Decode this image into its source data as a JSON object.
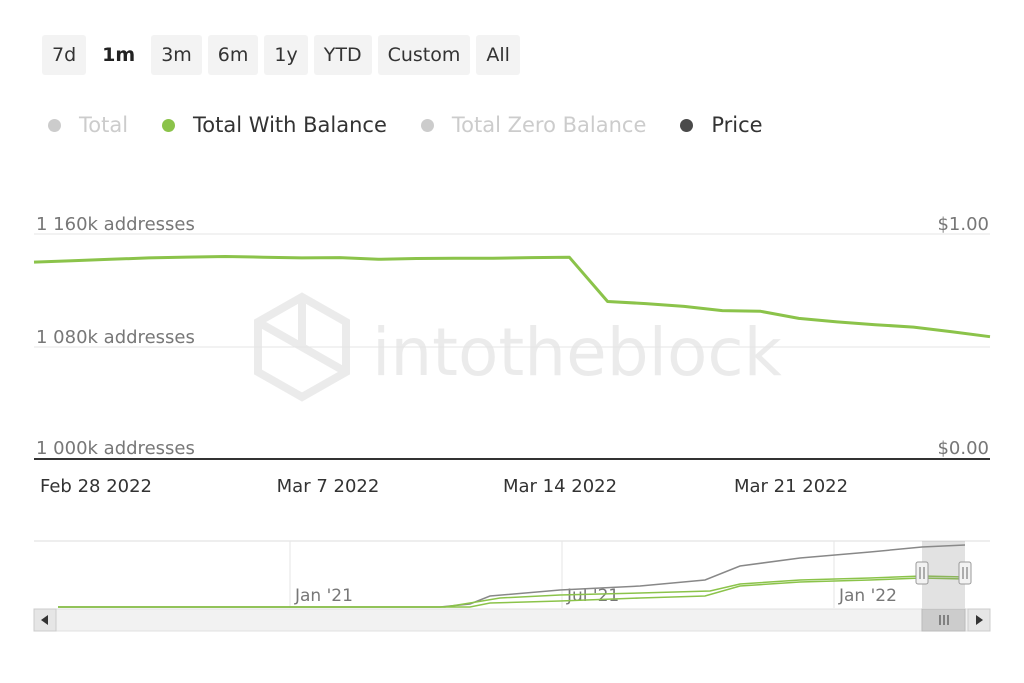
{
  "range_selector": {
    "buttons": [
      "7d",
      "1m",
      "3m",
      "6m",
      "1y",
      "YTD",
      "Custom",
      "All"
    ],
    "selected": "1m"
  },
  "legend": {
    "items": [
      {
        "label": "Total",
        "color": "#cccccc",
        "visible": false
      },
      {
        "label": "Total With Balance",
        "color": "#8bc34a",
        "visible": true
      },
      {
        "label": "Total Zero Balance",
        "color": "#cccccc",
        "visible": false
      },
      {
        "label": "Price",
        "color": "#4a4a4a",
        "visible": true
      }
    ]
  },
  "watermark": "intotheblock",
  "chart_data": {
    "type": "line",
    "x": [
      "2022-02-28",
      "2022-03-01",
      "2022-03-02",
      "2022-03-03",
      "2022-03-04",
      "2022-03-05",
      "2022-03-06",
      "2022-03-07",
      "2022-03-08",
      "2022-03-09",
      "2022-03-10",
      "2022-03-11",
      "2022-03-12",
      "2022-03-13",
      "2022-03-14",
      "2022-03-15",
      "2022-03-16",
      "2022-03-17",
      "2022-03-18",
      "2022-03-19",
      "2022-03-20",
      "2022-03-21",
      "2022-03-22",
      "2022-03-23",
      "2022-03-24",
      "2022-03-25"
    ],
    "series": [
      {
        "name": "Total With Balance",
        "color": "#8bc34a",
        "unit": "k addresses",
        "values": [
          1140,
          1141,
          1142,
          1143,
          1143.6,
          1144,
          1143.5,
          1143,
          1143.2,
          1142,
          1142.6,
          1142.8,
          1142.8,
          1143.2,
          1143.4,
          1112,
          1110.5,
          1108.5,
          1105.5,
          1105,
          1100,
          1097.5,
          1095.5,
          1093.8,
          1090.5,
          1087
        ]
      }
    ],
    "x_tick_labels": [
      "Feb 28 2022",
      "Mar 7 2022",
      "Mar 14 2022",
      "Mar 21 2022"
    ],
    "y_left": {
      "ticks": [
        "1 160k addresses",
        "1 080k addresses",
        "1 000k addresses"
      ],
      "range": [
        1000,
        1160
      ],
      "unit": "k addresses"
    },
    "y_right": {
      "ticks": [
        "$1.00",
        "$0.00"
      ],
      "range": [
        0,
        1
      ],
      "unit": "$"
    },
    "grid": true,
    "navigator": {
      "tick_labels": [
        "Jan '21",
        "Jul '21",
        "Jan '22"
      ],
      "series_hint": [
        "Total",
        "Total With Balance",
        "Total Zero Balance"
      ]
    }
  }
}
